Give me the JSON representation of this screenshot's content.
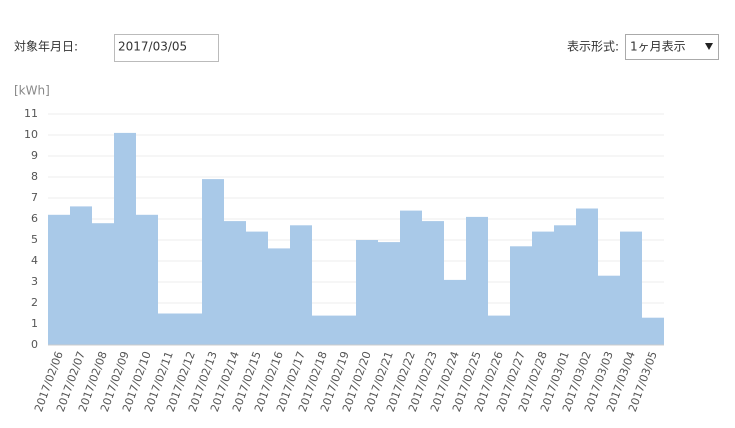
{
  "form": {
    "date_label": "対象年月日:",
    "date_value": "2017/03/05",
    "format_label": "表示形式:",
    "format_value": "1ヶ月表示"
  },
  "chart_data": {
    "type": "bar",
    "y_unit_label": "[kWh]",
    "categories": [
      "2017/02/06",
      "2017/02/07",
      "2017/02/08",
      "2017/02/09",
      "2017/02/10",
      "2017/02/11",
      "2017/02/12",
      "2017/02/13",
      "2017/02/14",
      "2017/02/15",
      "2017/02/16",
      "2017/02/17",
      "2017/02/18",
      "2017/02/19",
      "2017/02/20",
      "2017/02/21",
      "2017/02/22",
      "2017/02/23",
      "2017/02/24",
      "2017/02/25",
      "2017/02/26",
      "2017/02/27",
      "2017/02/28",
      "2017/03/01",
      "2017/03/02",
      "2017/03/03",
      "2017/03/04",
      "2017/03/05"
    ],
    "values": [
      6.2,
      6.6,
      5.8,
      10.1,
      6.2,
      1.5,
      1.5,
      7.9,
      5.9,
      5.4,
      4.6,
      5.7,
      1.4,
      1.4,
      5.0,
      4.9,
      6.4,
      5.9,
      3.1,
      6.1,
      1.4,
      4.7,
      5.4,
      5.7,
      6.5,
      3.3,
      5.4,
      1.3
    ],
    "color": "#a9c9e8",
    "ylim": [
      0,
      11
    ],
    "yticks": [
      0,
      1,
      2,
      3,
      4,
      5,
      6,
      7,
      8,
      9,
      10,
      11
    ],
    "grid": true
  }
}
